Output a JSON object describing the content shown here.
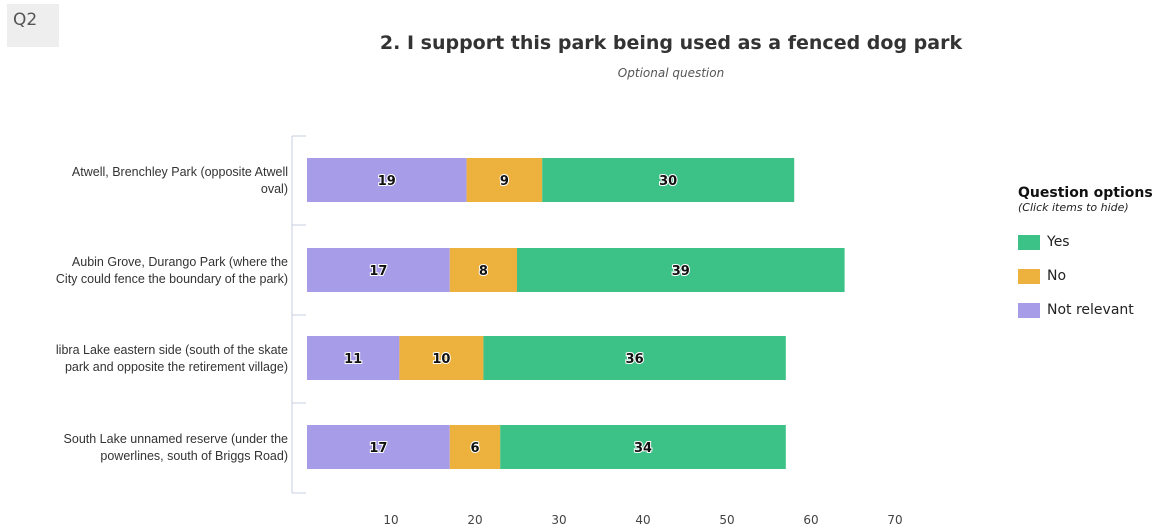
{
  "question_badge": "Q2",
  "title": "2. I support this park being used as a fenced dog park",
  "subtitle": "Optional question",
  "legend": {
    "title": "Question options",
    "subtitle": "(Click items to hide)",
    "items": [
      {
        "label": "Yes",
        "color": "#3cc187"
      },
      {
        "label": "No",
        "color": "#edb13d"
      },
      {
        "label": "Not relevant",
        "color": "#a79ce7"
      }
    ]
  },
  "chart_data": {
    "type": "bar",
    "orientation": "horizontal",
    "stacked": true,
    "categories": [
      [
        "Atwell, Brenchley Park (opposite Atwell",
        "oval)"
      ],
      [
        "Aubin Grove, Durango Park (where the",
        "City could fence the boundary of the park)"
      ],
      [
        "libra Lake eastern side (south of the skate",
        "park and opposite the retirement village)"
      ],
      [
        "South Lake unnamed reserve (under the",
        "powerlines, south of Briggs Road)"
      ]
    ],
    "series": [
      {
        "name": "Not relevant",
        "color": "#a79ce7",
        "values": [
          19,
          17,
          11,
          17
        ]
      },
      {
        "name": "No",
        "color": "#edb13d",
        "values": [
          9,
          8,
          10,
          6
        ]
      },
      {
        "name": "Yes",
        "color": "#3cc187",
        "values": [
          30,
          39,
          36,
          34
        ]
      }
    ],
    "xlim": [
      0,
      70
    ],
    "xticks": [
      10,
      20,
      30,
      40,
      50,
      60,
      70
    ],
    "grid": false,
    "legend_position": "right"
  }
}
